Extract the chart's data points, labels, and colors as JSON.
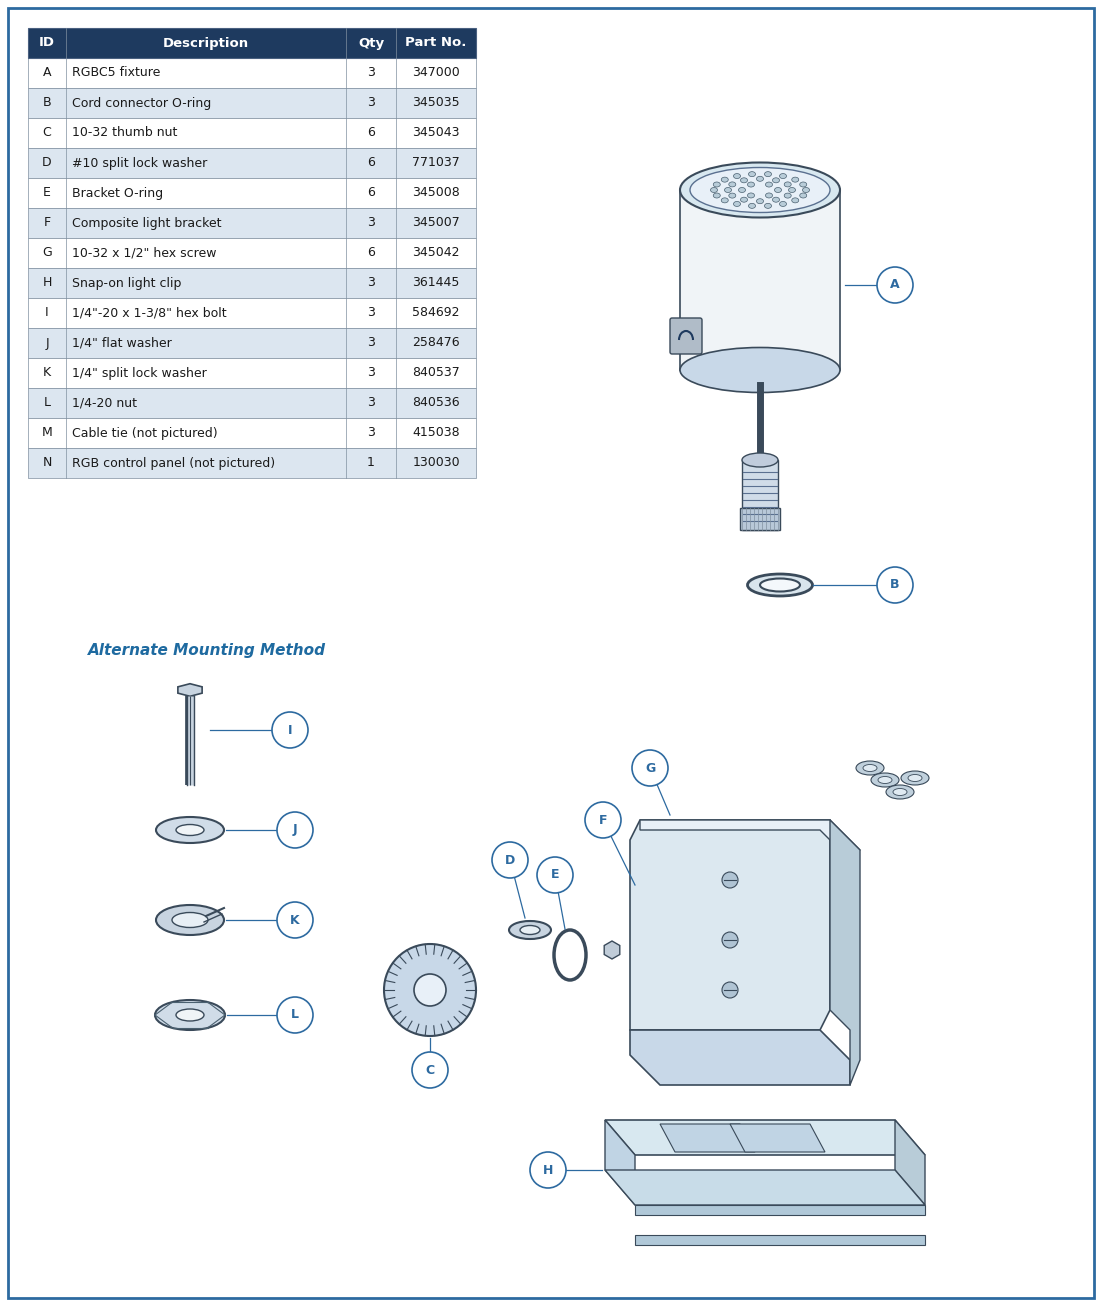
{
  "header_bg": "#1e3a5f",
  "header_text_color": "#ffffff",
  "row_even_bg": "#ffffff",
  "row_odd_bg": "#dce6f0",
  "cell_text_color": "#1a1a1a",
  "headers": [
    "ID",
    "Description",
    "Qty",
    "Part No."
  ],
  "rows": [
    [
      "A",
      "RGBC5 fixture",
      "3",
      "347000"
    ],
    [
      "B",
      "Cord connector O-ring",
      "3",
      "345035"
    ],
    [
      "C",
      "10-32 thumb nut",
      "6",
      "345043"
    ],
    [
      "D",
      "#10 split lock washer",
      "6",
      "771037"
    ],
    [
      "E",
      "Bracket O-ring",
      "6",
      "345008"
    ],
    [
      "F",
      "Composite light bracket",
      "3",
      "345007"
    ],
    [
      "G",
      "10-32 x 1/2\" hex screw",
      "6",
      "345042"
    ],
    [
      "H",
      "Snap-on light clip",
      "3",
      "361445"
    ],
    [
      "I",
      "1/4\"-20 x 1-3/8\" hex bolt",
      "3",
      "584692"
    ],
    [
      "J",
      "1/4\" flat washer",
      "3",
      "258476"
    ],
    [
      "K",
      "1/4\" split lock washer",
      "3",
      "840537"
    ],
    [
      "L",
      "1/4-20 nut",
      "3",
      "840536"
    ],
    [
      "M",
      "Cable tie (not pictured)",
      "3",
      "415038"
    ],
    [
      "N",
      "RGB control panel (not pictured)",
      "1",
      "130030"
    ]
  ],
  "alt_mounting_text": "Alternate Mounting Method",
  "alt_mounting_color": "#1e6aa0",
  "label_circle_color": "#2d6aa0",
  "label_circle_bg": "#ffffff",
  "label_line_color": "#2d6aa0",
  "diagram_line_color": "#4a6080"
}
